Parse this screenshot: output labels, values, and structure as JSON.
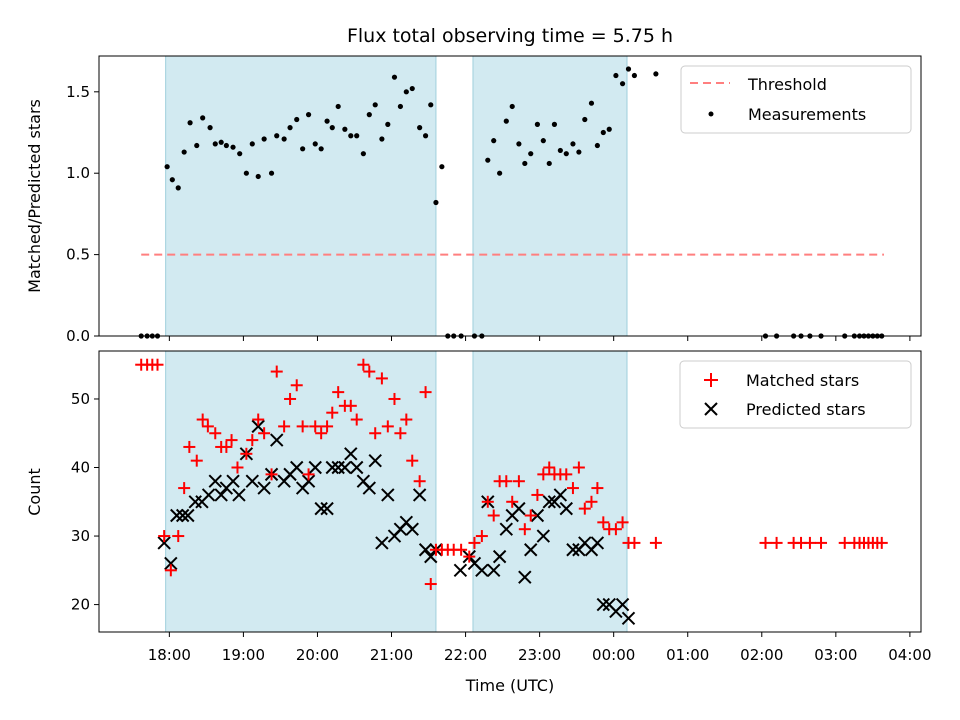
{
  "title": "Flux total observing time = 5.75 h",
  "colors": {
    "shade": "#add8e6",
    "threshold": "#ff7f7f",
    "matched": "#ff0000",
    "predicted": "#000000",
    "measure": "#000000"
  },
  "chart_data": [
    {
      "type": "scatter",
      "ylabel": "Matched/Predicted stars",
      "ylim": [
        0,
        1.72
      ],
      "yticks": [
        0.0,
        0.5,
        1.0,
        1.5
      ],
      "ytick_labels": [
        "0.0",
        "0.5",
        "1.0",
        "1.5"
      ],
      "xlim": [
        17.05,
        28.15
      ],
      "xticks": [
        18,
        19,
        20,
        21,
        22,
        23,
        24,
        25,
        26,
        27,
        28
      ],
      "shaded_ranges": [
        [
          17.95,
          21.6
        ],
        [
          22.1,
          24.18
        ]
      ],
      "legend_position": "top-right",
      "threshold": {
        "name": "Threshold",
        "y": 0.5,
        "x": [
          17.62,
          27.65
        ]
      },
      "measurements": {
        "name": "Measurements",
        "x": [
          17.62,
          17.7,
          17.77,
          17.84,
          17.97,
          18.04,
          18.12,
          18.2,
          18.28,
          18.37,
          18.45,
          18.55,
          18.62,
          18.7,
          18.77,
          18.86,
          18.95,
          19.04,
          19.12,
          19.2,
          19.28,
          19.38,
          19.45,
          19.55,
          19.63,
          19.72,
          19.8,
          19.88,
          19.97,
          20.05,
          20.13,
          20.2,
          20.28,
          20.37,
          20.45,
          20.53,
          20.62,
          20.7,
          20.78,
          20.87,
          20.95,
          21.04,
          21.12,
          21.2,
          21.28,
          21.38,
          21.46,
          21.53,
          21.6,
          21.68,
          21.76,
          21.84,
          21.94,
          22.12,
          22.22,
          22.3,
          22.38,
          22.46,
          22.55,
          22.63,
          22.72,
          22.8,
          22.88,
          22.97,
          23.05,
          23.13,
          23.2,
          23.28,
          23.36,
          23.45,
          23.53,
          23.61,
          23.7,
          23.78,
          23.86,
          23.94,
          24.03,
          24.12,
          24.2,
          24.28,
          24.57,
          26.05,
          26.2,
          26.43,
          26.53,
          26.65,
          26.8,
          27.12,
          27.25,
          27.32,
          27.38,
          27.44,
          27.5,
          27.56,
          27.62
        ],
        "y": [
          0,
          0,
          0,
          0,
          1.04,
          0.96,
          0.91,
          1.13,
          1.31,
          1.17,
          1.34,
          1.28,
          1.18,
          1.19,
          1.17,
          1.16,
          1.12,
          1.0,
          1.18,
          0.98,
          1.21,
          1.0,
          1.23,
          1.21,
          1.28,
          1.33,
          1.15,
          1.36,
          1.18,
          1.15,
          1.32,
          1.28,
          1.41,
          1.27,
          1.23,
          1.23,
          1.12,
          1.36,
          1.42,
          1.21,
          1.3,
          1.59,
          1.41,
          1.5,
          1.52,
          1.28,
          1.23,
          1.42,
          0.82,
          1.04,
          0,
          0,
          0,
          0,
          0,
          1.08,
          1.2,
          1.0,
          1.32,
          1.41,
          1.18,
          1.06,
          1.12,
          1.3,
          1.2,
          1.06,
          1.3,
          1.14,
          1.12,
          1.18,
          1.13,
          1.33,
          1.43,
          1.17,
          1.25,
          1.27,
          1.6,
          1.55,
          1.64,
          1.6,
          1.61,
          0,
          0,
          0,
          0,
          0,
          0,
          0,
          0,
          0,
          0,
          0,
          0,
          0,
          0
        ]
      }
    },
    {
      "type": "scatter",
      "ylabel": "Count",
      "xlabel": "Time (UTC)",
      "ylim": [
        16,
        57
      ],
      "yticks": [
        20,
        30,
        40,
        50
      ],
      "ytick_labels": [
        "20",
        "30",
        "40",
        "50"
      ],
      "xlim": [
        17.05,
        28.15
      ],
      "xticks": [
        18,
        19,
        20,
        21,
        22,
        23,
        24,
        25,
        26,
        27,
        28
      ],
      "xtick_labels": [
        "18:00",
        "19:00",
        "20:00",
        "21:00",
        "22:00",
        "23:00",
        "00:00",
        "01:00",
        "02:00",
        "03:00",
        "04:00"
      ],
      "shaded_ranges": [
        [
          17.95,
          21.6
        ],
        [
          22.1,
          24.18
        ]
      ],
      "legend_position": "top-right",
      "matched": {
        "name": "Matched stars",
        "x": [
          17.62,
          17.7,
          17.77,
          17.84,
          17.93,
          18.02,
          18.12,
          18.2,
          18.27,
          18.37,
          18.45,
          18.52,
          18.62,
          18.7,
          18.77,
          18.84,
          18.92,
          19.04,
          19.12,
          19.2,
          19.28,
          19.38,
          19.45,
          19.55,
          19.63,
          19.72,
          19.8,
          19.88,
          19.97,
          20.05,
          20.13,
          20.2,
          20.28,
          20.37,
          20.45,
          20.53,
          20.62,
          20.7,
          20.78,
          20.87,
          20.95,
          21.04,
          21.12,
          21.2,
          21.28,
          21.38,
          21.46,
          21.53,
          21.6,
          21.68,
          21.76,
          21.84,
          21.94,
          22.05,
          22.12,
          22.22,
          22.3,
          22.38,
          22.46,
          22.55,
          22.63,
          22.72,
          22.8,
          22.88,
          22.97,
          23.05,
          23.13,
          23.2,
          23.28,
          23.36,
          23.45,
          23.53,
          23.61,
          23.7,
          23.78,
          23.86,
          23.94,
          24.03,
          24.12,
          24.2,
          24.28,
          24.57,
          26.05,
          26.2,
          26.43,
          26.53,
          26.65,
          26.8,
          27.12,
          27.25,
          27.32,
          27.38,
          27.44,
          27.5,
          27.56,
          27.62
        ],
        "y": [
          55,
          55,
          55,
          55,
          30,
          25,
          30,
          37,
          43,
          41,
          47,
          46,
          45,
          43,
          43,
          44,
          40,
          42,
          44,
          47,
          45,
          39,
          54,
          46,
          50,
          52,
          46,
          39,
          46,
          45,
          46,
          48,
          51,
          49,
          49,
          47,
          55,
          54,
          45,
          53,
          46,
          50,
          45,
          47,
          41,
          38,
          51,
          23,
          28,
          28,
          28,
          28,
          28,
          27,
          29,
          30,
          35,
          33,
          38,
          38,
          35,
          38,
          31,
          33,
          36,
          39,
          40,
          39,
          39,
          39,
          37,
          40,
          34,
          35,
          37,
          32,
          31,
          31,
          32,
          29,
          29,
          29,
          29,
          29,
          29,
          29,
          29,
          29,
          29,
          29,
          29,
          29,
          29,
          29,
          29,
          29
        ]
      },
      "predicted": {
        "name": "Predicted stars",
        "x": [
          17.93,
          18.02,
          18.1,
          18.18,
          18.25,
          18.35,
          18.44,
          18.53,
          18.62,
          18.7,
          18.77,
          18.86,
          18.94,
          19.04,
          19.12,
          19.2,
          19.28,
          19.38,
          19.45,
          19.55,
          19.63,
          19.72,
          19.8,
          19.88,
          19.97,
          20.05,
          20.13,
          20.2,
          20.28,
          20.37,
          20.45,
          20.53,
          20.62,
          20.7,
          20.78,
          20.87,
          20.95,
          21.04,
          21.12,
          21.2,
          21.28,
          21.38,
          21.46,
          21.53,
          21.6,
          21.93,
          22.05,
          22.12,
          22.22,
          22.3,
          22.38,
          22.46,
          22.55,
          22.63,
          22.72,
          22.8,
          22.88,
          22.97,
          23.05,
          23.13,
          23.2,
          23.28,
          23.36,
          23.45,
          23.53,
          23.61,
          23.7,
          23.78,
          23.86,
          23.94,
          24.03,
          24.12,
          24.2
        ],
        "y": [
          29,
          26,
          33,
          33,
          33,
          35,
          35,
          36,
          38,
          36,
          37,
          38,
          36,
          42,
          38,
          46,
          37,
          39,
          44,
          38,
          39,
          40,
          37,
          38,
          40,
          34,
          34,
          40,
          40,
          40,
          42,
          40,
          38,
          37,
          41,
          29,
          36,
          30,
          31,
          32,
          31,
          36,
          28,
          27,
          28,
          25,
          27,
          26,
          25,
          35,
          25,
          27,
          31,
          33,
          34,
          24,
          28,
          33,
          30,
          35,
          35,
          36,
          34,
          28,
          28,
          29,
          28,
          29,
          20,
          20,
          19,
          20,
          18
        ]
      }
    }
  ],
  "legend": {
    "threshold": "Threshold",
    "measurements": "Measurements",
    "matched": "Matched stars",
    "predicted": "Predicted stars"
  }
}
